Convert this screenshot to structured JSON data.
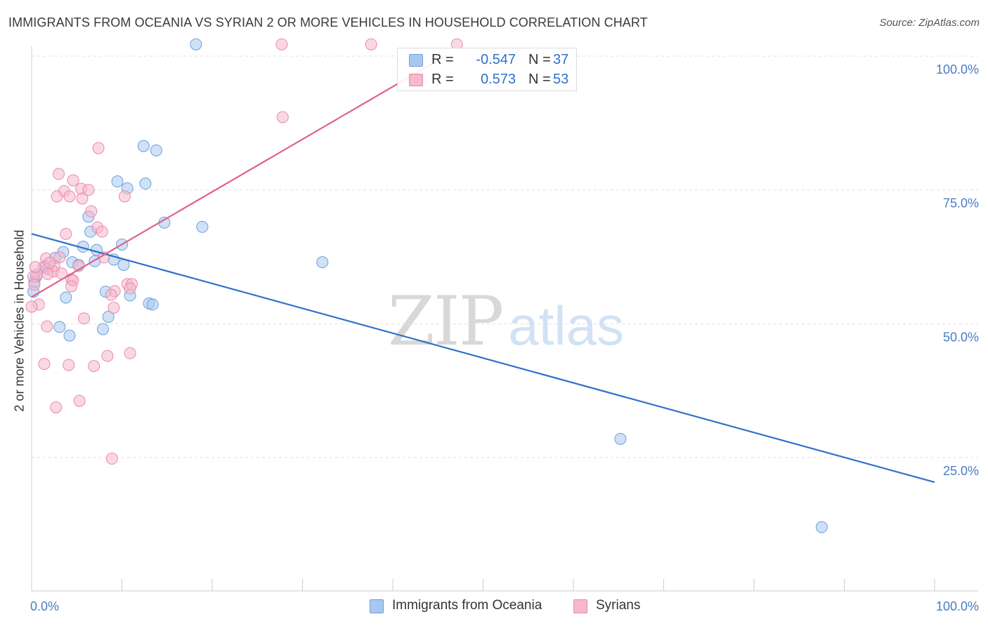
{
  "header": {
    "title": "IMMIGRANTS FROM OCEANIA VS SYRIAN 2 OR MORE VEHICLES IN HOUSEHOLD CORRELATION CHART",
    "source": "Source: ZipAtlas.com"
  },
  "watermark": {
    "zip": "ZIP",
    "atlas": "atlas"
  },
  "legend": {
    "rows": [
      {
        "r_label": "R =",
        "r_value": "-0.547",
        "n_label": "N =",
        "n_value": "37"
      },
      {
        "r_label": "R =",
        "r_value": "0.573",
        "n_label": "N =",
        "n_value": "53"
      }
    ]
  },
  "bottom_legend": {
    "items": [
      {
        "label": "Immigrants from Oceania"
      },
      {
        "label": "Syrians"
      }
    ]
  },
  "colors": {
    "blue_fill": "#a8c8f0",
    "blue_stroke": "#6d9fd8",
    "blue_line": "#2f72c9",
    "pink_fill": "#f6b8cc",
    "pink_stroke": "#e98aa9",
    "pink_line": "#e0608c",
    "tick_label": "#4a7cc4",
    "grid": "#e0e0e0"
  },
  "chart_data": {
    "type": "scatter",
    "title": "IMMIGRANTS FROM OCEANIA VS SYRIAN 2 OR MORE VEHICLES IN HOUSEHOLD CORRELATION CHART",
    "xlabel": "",
    "ylabel": "2 or more Vehicles in Household",
    "xlim": [
      0,
      100
    ],
    "ylim": [
      0,
      100
    ],
    "x_tick_labels": [
      {
        "value": 0,
        "label": "0.0%"
      },
      {
        "value": 100,
        "label": "100.0%"
      }
    ],
    "y_tick_labels": [
      {
        "value": 25,
        "label": "25.0%"
      },
      {
        "value": 50,
        "label": "50.0%"
      },
      {
        "value": 75,
        "label": "75.0%"
      },
      {
        "value": 100,
        "label": "100.0%"
      }
    ],
    "grid": true,
    "legend_position": "top-center",
    "series": [
      {
        "name": "Immigrants from Oceania",
        "color": "blue",
        "R": -0.547,
        "N": 37,
        "trend": {
          "x": [
            0,
            100
          ],
          "y": [
            66.8,
            20.4
          ]
        },
        "points": [
          [
            18.2,
            102.2
          ],
          [
            12.4,
            83.2
          ],
          [
            13.8,
            82.4
          ],
          [
            9.5,
            76.6
          ],
          [
            12.6,
            76.2
          ],
          [
            10.6,
            75.3
          ],
          [
            14.7,
            68.9
          ],
          [
            18.9,
            68.1
          ],
          [
            6.3,
            70.0
          ],
          [
            6.5,
            67.2
          ],
          [
            10.0,
            64.8
          ],
          [
            5.7,
            64.4
          ],
          [
            7.2,
            63.8
          ],
          [
            3.5,
            63.4
          ],
          [
            2.6,
            62.3
          ],
          [
            9.1,
            62.0
          ],
          [
            7.0,
            61.7
          ],
          [
            4.5,
            61.5
          ],
          [
            5.2,
            61.0
          ],
          [
            10.2,
            61.0
          ],
          [
            1.5,
            60.8
          ],
          [
            1.8,
            60.2
          ],
          [
            32.2,
            61.5
          ],
          [
            0.5,
            58.8
          ],
          [
            0.3,
            57.8
          ],
          [
            8.2,
            56.0
          ],
          [
            10.9,
            55.3
          ],
          [
            3.8,
            54.9
          ],
          [
            13.0,
            53.8
          ],
          [
            13.4,
            53.6
          ],
          [
            8.5,
            51.3
          ],
          [
            3.1,
            49.4
          ],
          [
            7.9,
            49.0
          ],
          [
            4.2,
            47.8
          ],
          [
            0.2,
            56.0
          ],
          [
            65.2,
            28.5
          ],
          [
            87.5,
            12.0
          ]
        ]
      },
      {
        "name": "Syrians",
        "color": "pink",
        "R": 0.573,
        "N": 53,
        "trend": {
          "x": [
            0,
            45.8
          ],
          "y": [
            55.0,
            100.0
          ]
        },
        "points": [
          [
            27.7,
            102.2
          ],
          [
            37.6,
            102.2
          ],
          [
            47.1,
            102.2
          ],
          [
            27.8,
            88.6
          ],
          [
            7.4,
            82.8
          ],
          [
            3.0,
            78.0
          ],
          [
            4.6,
            76.8
          ],
          [
            5.5,
            75.2
          ],
          [
            3.6,
            74.8
          ],
          [
            6.3,
            75.0
          ],
          [
            4.2,
            73.8
          ],
          [
            2.8,
            73.8
          ],
          [
            5.6,
            73.4
          ],
          [
            10.3,
            73.8
          ],
          [
            6.6,
            71.0
          ],
          [
            7.3,
            68.0
          ],
          [
            7.8,
            67.2
          ],
          [
            3.8,
            66.8
          ],
          [
            1.6,
            62.2
          ],
          [
            3.1,
            62.4
          ],
          [
            8.0,
            62.4
          ],
          [
            5.2,
            60.8
          ],
          [
            2.5,
            60.8
          ],
          [
            1.3,
            60.5
          ],
          [
            2.4,
            59.8
          ],
          [
            0.6,
            59.2
          ],
          [
            1.8,
            59.3
          ],
          [
            0.2,
            58.8
          ],
          [
            4.4,
            58.3
          ],
          [
            4.6,
            58.1
          ],
          [
            0.3,
            57.3
          ],
          [
            4.4,
            57.0
          ],
          [
            10.6,
            57.4
          ],
          [
            11.1,
            57.4
          ],
          [
            9.2,
            56.1
          ],
          [
            10.9,
            56.6
          ],
          [
            8.8,
            55.4
          ],
          [
            0.8,
            53.6
          ],
          [
            0.0,
            53.2
          ],
          [
            9.1,
            53.0
          ],
          [
            5.8,
            51.0
          ],
          [
            1.7,
            49.5
          ],
          [
            8.4,
            44.0
          ],
          [
            10.9,
            44.5
          ],
          [
            1.4,
            42.5
          ],
          [
            4.1,
            42.3
          ],
          [
            6.9,
            42.1
          ],
          [
            5.3,
            35.6
          ],
          [
            2.7,
            34.4
          ],
          [
            8.9,
            24.8
          ],
          [
            0.4,
            60.6
          ],
          [
            3.3,
            59.4
          ],
          [
            2.0,
            61.4
          ]
        ]
      }
    ]
  }
}
